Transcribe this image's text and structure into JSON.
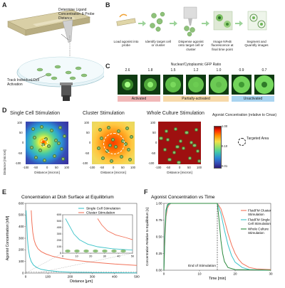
{
  "panels": {
    "A": "A",
    "B": "B",
    "C": "C",
    "D": "D",
    "E": "E",
    "F": "F"
  },
  "panelA": {
    "label_top": "Determine Ligand Concentration & Probe Distance",
    "label_bottom": "Track Individual Cell Activation"
  },
  "panelB": {
    "steps": [
      "Load agonist into probe",
      "Identify target cell or cluster",
      "Dispense agonist onto target cell or cluster",
      "Image NFκB fluorescence at final time point",
      "Segment and Quantify images"
    ]
  },
  "panelC": {
    "title": "Nuclear/Cytoplasmic GFP Ratio",
    "ratios": [
      "2.6",
      "1.8",
      "1.5",
      "1.2",
      "1.0",
      "0.9",
      "0.7"
    ],
    "bands": [
      {
        "label": "Activated",
        "color": "#f2b8b8"
      },
      {
        "label": "Partially-activated",
        "color": "#f7d9a8"
      },
      {
        "label": "Unactivated",
        "color": "#a9d4f0"
      }
    ]
  },
  "panelD": {
    "titles": [
      "Single Cell Stimulation",
      "Cluster Stimulation",
      "Whole Culture Stimulation"
    ],
    "ylabel": "Distance [micron]",
    "xlabel": "Distance [micron]",
    "ticks": [
      "-100",
      "-50",
      "0",
      "50",
      "100"
    ],
    "colorbar_title": "Agonist Concentration (relative to Cmax)",
    "colorbar_ticks": [
      "1.00",
      "0.10",
      "0.01"
    ],
    "legend": "Targeted Area"
  },
  "chart_data": [
    {
      "type": "line",
      "title": "Concentration at Dish Surface at Equilibrium",
      "xlabel": "Distance [μm]",
      "ylabel": "Agonist Concentration [nM]",
      "xlim": [
        0,
        500
      ],
      "ylim": [
        0,
        600
      ],
      "xticks": [
        "0",
        "100",
        "200",
        "300",
        "400",
        "500"
      ],
      "yticks": [
        "0",
        "100",
        "200",
        "300",
        "400",
        "500",
        "600"
      ],
      "series": [
        {
          "name": "Single Cell Stimulation",
          "color": "#3cc3c9",
          "x": [
            2,
            5,
            8,
            12,
            18,
            25,
            35,
            50,
            70,
            100,
            150,
            200,
            250,
            300,
            400,
            500
          ],
          "y": [
            540,
            420,
            300,
            210,
            140,
            100,
            70,
            48,
            32,
            22,
            12,
            8,
            6,
            5,
            3,
            2
          ]
        },
        {
          "name": "Cluster Stimulation",
          "color": "#f2735a",
          "x": [
            25,
            28,
            32,
            38,
            45,
            55,
            70,
            90,
            120,
            160,
            200,
            250,
            300,
            350,
            400,
            450,
            500
          ],
          "y": [
            540,
            440,
            350,
            285,
            245,
            210,
            185,
            165,
            145,
            128,
            116,
            104,
            94,
            86,
            78,
            72,
            66
          ]
        }
      ],
      "inset": {
        "xlim": [
          0,
          50
        ],
        "ylim": [
          0,
          600
        ],
        "xticks": [
          "0",
          "10",
          "20",
          "30",
          "40",
          "50"
        ],
        "yticks": [
          "0",
          "100",
          "200",
          "300",
          "400",
          "500",
          "600"
        ]
      }
    },
    {
      "type": "line",
      "title": "Agonist Concentration vs Time",
      "xlabel": "Time [min]",
      "ylabel": "Concentration Relative to Equilibrium [1]",
      "xlim": [
        0,
        30
      ],
      "ylim": [
        0,
        1.0
      ],
      "xticks": [
        "0",
        "10",
        "20",
        "30"
      ],
      "yticks": [
        "0.00",
        "0.25",
        "0.50",
        "0.75",
        "1.00"
      ],
      "annotation": "End of Stimulation",
      "stim_end": 15,
      "series": [
        {
          "name": "FluidFM Cluster Stimulation",
          "color": "#f2735a",
          "x": [
            0,
            0.3,
            0.6,
            1,
            1.5,
            2,
            3,
            5,
            10,
            15,
            16,
            17,
            18,
            19,
            20,
            21,
            22,
            24,
            26,
            30
          ],
          "y": [
            0,
            0.5,
            0.8,
            0.93,
            0.98,
            1,
            1,
            1,
            1,
            1,
            0.92,
            0.75,
            0.55,
            0.38,
            0.25,
            0.16,
            0.1,
            0.04,
            0.02,
            0.01
          ]
        },
        {
          "name": "FluidFM Single Cell Stimulation",
          "color": "#3cc3c9",
          "x": [
            0,
            0.3,
            0.6,
            1,
            1.5,
            2,
            3,
            5,
            10,
            15,
            16,
            17,
            18,
            19,
            20,
            22,
            24,
            30
          ],
          "y": [
            0,
            0.55,
            0.85,
            0.96,
            0.99,
            1,
            1,
            1,
            1,
            1,
            0.85,
            0.6,
            0.38,
            0.22,
            0.12,
            0.04,
            0.01,
            0
          ]
        },
        {
          "name": "Whole Culture Stimulation",
          "color": "#2b8a3e",
          "x": [
            0,
            0.3,
            0.6,
            1,
            1.5,
            2,
            3,
            5,
            10,
            15,
            15.5,
            16,
            16.5,
            17,
            18,
            20,
            30
          ],
          "y": [
            0,
            0.6,
            0.9,
            0.98,
            1,
            1,
            1,
            1,
            1,
            1,
            0.75,
            0.45,
            0.25,
            0.13,
            0.04,
            0.01,
            0
          ]
        }
      ]
    }
  ]
}
